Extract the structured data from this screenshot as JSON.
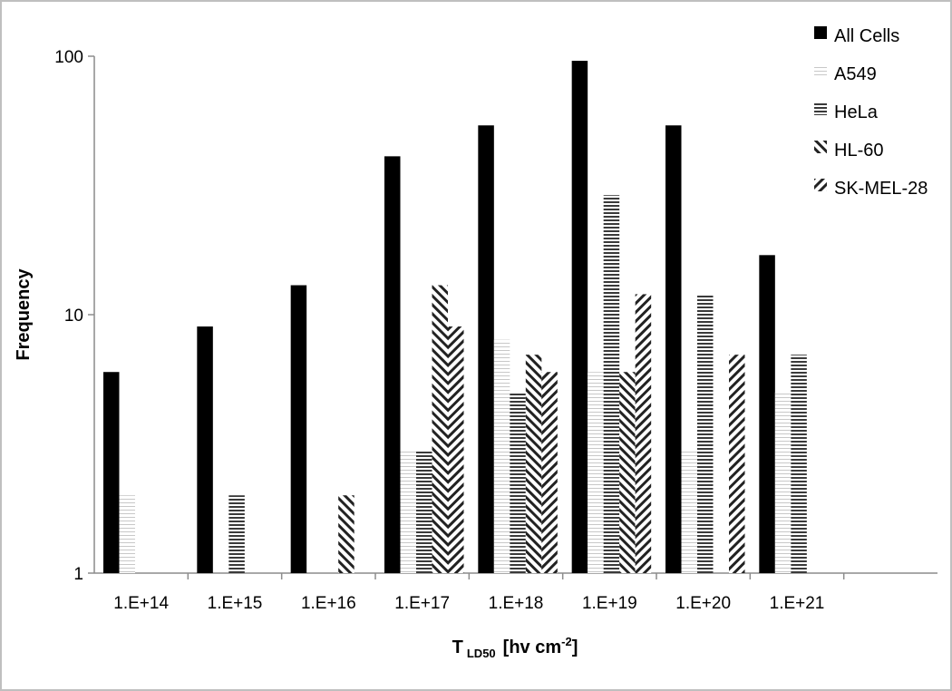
{
  "chart_data": {
    "type": "bar",
    "title": "",
    "xlabel": "T",
    "xlabel_subscript": "LD50",
    "xlabel_unit": "[hv cm",
    "xlabel_unit_sup": "-2",
    "xlabel_unit_end": "]",
    "ylabel": "Frequency",
    "yscale": "log",
    "ylim": [
      1,
      100
    ],
    "yticks": [
      "1",
      "10",
      "100"
    ],
    "categories": [
      "1.E+14",
      "1.E+15",
      "1.E+16",
      "1.E+17",
      "1.E+18",
      "1.E+19",
      "1.E+20",
      "1.E+21",
      ""
    ],
    "legend_position": "top-right",
    "series": [
      {
        "name": "All Cells",
        "pattern": "solid",
        "values": [
          6,
          9,
          13,
          41,
          54,
          96,
          54,
          17,
          null
        ]
      },
      {
        "name": "A549",
        "pattern": "hlines-thin",
        "values": [
          2,
          null,
          null,
          3,
          8,
          6,
          3,
          5,
          null
        ]
      },
      {
        "name": "HeLa",
        "pattern": "hlines-bold",
        "values": [
          null,
          2,
          null,
          3,
          5,
          29,
          12,
          7,
          null
        ]
      },
      {
        "name": "HL-60",
        "pattern": "diag-back",
        "values": [
          null,
          null,
          2,
          13,
          7,
          6,
          null,
          null,
          null
        ]
      },
      {
        "name": "SK-MEL-28",
        "pattern": "diag-fwd",
        "values": [
          null,
          null,
          null,
          9,
          6,
          12,
          7,
          null,
          null
        ]
      }
    ]
  }
}
